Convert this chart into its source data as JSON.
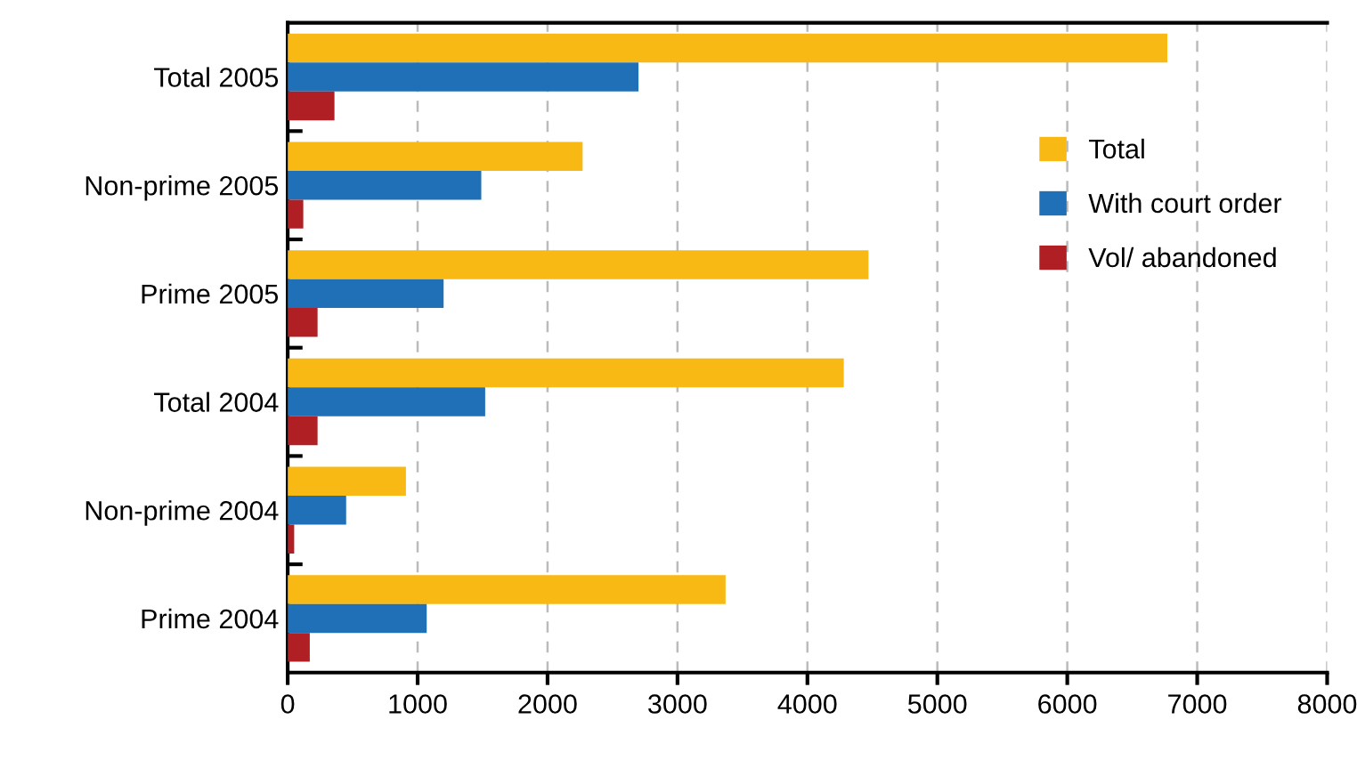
{
  "chart_data": {
    "type": "bar",
    "orientation": "horizontal",
    "categories": [
      "Total 2005",
      "Non-prime 2005",
      "Prime 2005",
      "Total 2004",
      "Non-prime 2004",
      "Prime 2004"
    ],
    "series": [
      {
        "name": "Total",
        "color": "#f8b914",
        "values": [
          6770,
          2270,
          4470,
          4280,
          910,
          3370
        ]
      },
      {
        "name": "With court order",
        "color": "#2070b8",
        "values": [
          2700,
          1490,
          1200,
          1520,
          450,
          1070
        ]
      },
      {
        "name": "Vol/ abandoned",
        "color": "#b01f24",
        "values": [
          360,
          120,
          230,
          230,
          50,
          170
        ]
      }
    ],
    "xlim": [
      0,
      8000
    ],
    "xticks": [
      0,
      1000,
      2000,
      3000,
      4000,
      5000,
      6000,
      7000,
      8000
    ],
    "grid": "x",
    "legend": "right"
  }
}
